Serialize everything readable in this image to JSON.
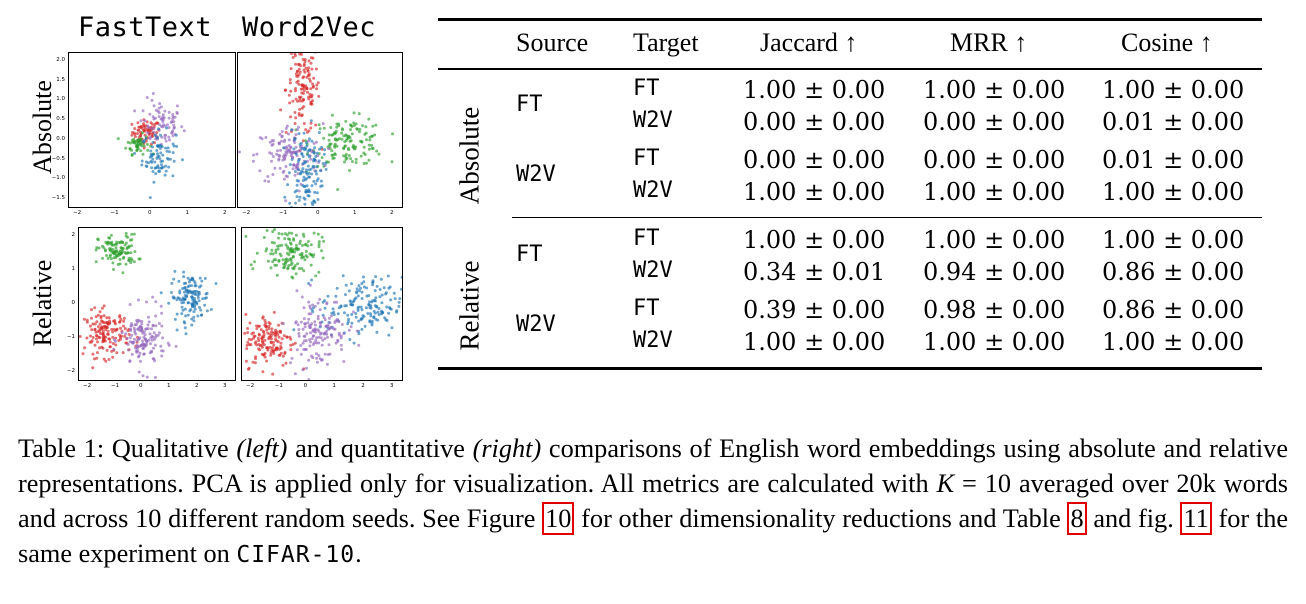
{
  "figure": {
    "col_titles": [
      "FastText",
      "Word2Vec"
    ],
    "row_titles": [
      "Absolute",
      "Relative"
    ],
    "panels": [
      {
        "id": "abs-ft",
        "xticks": [
          "−2",
          "−1",
          "0",
          "1",
          "2"
        ],
        "yticks": [
          "2.0",
          "1.5",
          "1.0",
          "0.5",
          "0.0",
          "−0.5",
          "−1.0",
          "−1.5"
        ],
        "clusters": [
          {
            "color": "#d62728",
            "cx": -0.15,
            "cy": 0.15,
            "sx": 0.25,
            "sy": 0.15,
            "n": 70
          },
          {
            "color": "#9467bd",
            "cx": 0.35,
            "cy": 0.35,
            "sx": 0.4,
            "sy": 0.3,
            "n": 80
          },
          {
            "color": "#2ca02c",
            "cx": -0.45,
            "cy": -0.15,
            "sx": 0.2,
            "sy": 0.12,
            "n": 50
          },
          {
            "color": "#1f77b4",
            "cx": 0.3,
            "cy": -0.45,
            "sx": 0.3,
            "sy": 0.3,
            "n": 80
          }
        ]
      },
      {
        "id": "abs-w2v",
        "xticks": [
          "−2",
          "−1",
          "0",
          "1",
          "2"
        ],
        "yticks": [],
        "clusters": [
          {
            "color": "#d62728",
            "cx": -0.6,
            "cy": 1.2,
            "sx": 0.3,
            "sy": 0.6,
            "n": 140
          },
          {
            "color": "#2ca02c",
            "cx": 1.0,
            "cy": -0.15,
            "sx": 0.65,
            "sy": 0.3,
            "n": 140
          },
          {
            "color": "#9467bd",
            "cx": -1.1,
            "cy": -0.5,
            "sx": 0.6,
            "sy": 0.4,
            "n": 130
          },
          {
            "color": "#1f77b4",
            "cx": -0.5,
            "cy": -0.9,
            "sx": 0.3,
            "sy": 0.55,
            "n": 130
          }
        ]
      },
      {
        "id": "rel-ft",
        "xticks": [
          "−2",
          "−1",
          "0",
          "1",
          "2",
          "3"
        ],
        "yticks": [
          "2",
          "1",
          "0",
          "−1",
          "−2"
        ],
        "clusters": [
          {
            "color": "#2ca02c",
            "cx": -0.9,
            "cy": 1.7,
            "sx": 0.35,
            "sy": 0.25,
            "n": 110
          },
          {
            "color": "#1f77b4",
            "cx": 1.7,
            "cy": 0.3,
            "sx": 0.35,
            "sy": 0.35,
            "n": 130
          },
          {
            "color": "#d62728",
            "cx": -1.3,
            "cy": -0.8,
            "sx": 0.4,
            "sy": 0.35,
            "n": 150
          },
          {
            "color": "#9467bd",
            "cx": 0.0,
            "cy": -1.0,
            "sx": 0.4,
            "sy": 0.45,
            "n": 140
          }
        ]
      },
      {
        "id": "rel-w2v",
        "xticks": [
          "−2",
          "−1",
          "0",
          "1",
          "2",
          "3"
        ],
        "yticks": [],
        "clusters": [
          {
            "color": "#2ca02c",
            "cx": -0.9,
            "cy": 1.8,
            "sx": 0.55,
            "sy": 0.35,
            "n": 140
          },
          {
            "color": "#1f77b4",
            "cx": 1.7,
            "cy": 0.1,
            "sx": 0.75,
            "sy": 0.45,
            "n": 170
          },
          {
            "color": "#d62728",
            "cx": -1.7,
            "cy": -0.9,
            "sx": 0.45,
            "sy": 0.4,
            "n": 150
          },
          {
            "color": "#9467bd",
            "cx": 0.1,
            "cy": -0.6,
            "sx": 0.55,
            "sy": 0.55,
            "n": 150
          }
        ]
      }
    ]
  },
  "table": {
    "headers": [
      "Source",
      "Target",
      "Jaccard ↑",
      "MRR ↑",
      "Cosine ↑"
    ],
    "groups": [
      {
        "name": "Absolute",
        "rows": [
          {
            "source": "FT",
            "target": "FT",
            "jaccard": "1.00 ± 0.00",
            "mrr": "1.00 ± 0.00",
            "cosine": "1.00 ± 0.00"
          },
          {
            "source": "",
            "target": "W2V",
            "jaccard": "0.00 ± 0.00",
            "mrr": "0.00 ± 0.00",
            "cosine": "0.01 ± 0.00"
          },
          {
            "source": "W2V",
            "target": "FT",
            "jaccard": "0.00 ± 0.00",
            "mrr": "0.00 ± 0.00",
            "cosine": "0.01 ± 0.00"
          },
          {
            "source": "",
            "target": "W2V",
            "jaccard": "1.00 ± 0.00",
            "mrr": "1.00 ± 0.00",
            "cosine": "1.00 ± 0.00"
          }
        ]
      },
      {
        "name": "Relative",
        "rows": [
          {
            "source": "FT",
            "target": "FT",
            "jaccard": "1.00 ± 0.00",
            "mrr": "1.00 ± 0.00",
            "cosine": "1.00 ± 0.00"
          },
          {
            "source": "",
            "target": "W2V",
            "jaccard": "0.34 ± 0.01",
            "mrr": "0.94 ± 0.00",
            "cosine": "0.86 ± 0.00"
          },
          {
            "source": "W2V",
            "target": "FT",
            "jaccard": "0.39 ± 0.00",
            "mrr": "0.98 ± 0.00",
            "cosine": "0.86 ± 0.00"
          },
          {
            "source": "",
            "target": "W2V",
            "jaccard": "1.00 ± 0.00",
            "mrr": "1.00 ± 0.00",
            "cosine": "1.00 ± 0.00"
          }
        ]
      }
    ]
  },
  "caption": {
    "label": "Table 1: Qualitative ",
    "left": "(left)",
    "mid": " and quantitative ",
    "right": "(right)",
    "text1": " comparisons of English word embeddings using absolute and relative representations. PCA is applied only for visualization. All metrics are calculated with ",
    "k": "K",
    "text2": " = 10 averaged over 20k words and across 10 different random seeds. See Figure ",
    "fig_ref": "10",
    "text3": " for other dimensionality reductions and Table ",
    "table_ref": "8",
    "text4": " and fig. ",
    "fig_ref2": "11",
    "text5": " for the same experiment on ",
    "dataset": "CIFAR-10",
    "end": "."
  }
}
